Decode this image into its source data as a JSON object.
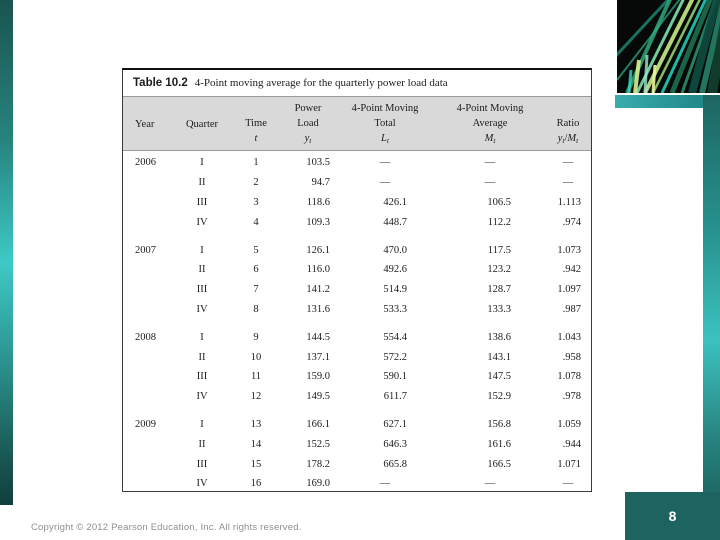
{
  "slide": {
    "page_number": "8",
    "copyright": "Copyright © 2012 Pearson Education, Inc. All rights reserved."
  },
  "colors": {
    "accent_teal_dark": "#1d6461",
    "accent_teal_bright": "#3ec9c6",
    "header_band_gray": "#d9d9d9"
  },
  "table": {
    "caption_label": "Table 10.2",
    "caption_text": "4-Point moving average for the quarterly power load data",
    "columns": [
      {
        "lines": [
          "",
          "Year",
          ""
        ]
      },
      {
        "lines": [
          "",
          "Quarter",
          ""
        ]
      },
      {
        "lines": [
          "",
          "Time",
          ""
        ],
        "symbol": "t"
      },
      {
        "lines": [
          "Power",
          "Load",
          ""
        ],
        "symbol": "y_t"
      },
      {
        "lines": [
          "4-Point Moving",
          "Total",
          ""
        ],
        "symbol": "L_t"
      },
      {
        "lines": [
          "4-Point Moving",
          "Average",
          ""
        ],
        "symbol": "M_t"
      },
      {
        "lines": [
          "",
          "Ratio",
          ""
        ],
        "symbol": "y_t/M_t"
      }
    ],
    "rows": [
      [
        "2006",
        "I",
        "1",
        "103.5",
        "—",
        "—",
        "—"
      ],
      [
        "",
        "II",
        "2",
        "94.7",
        "—",
        "—",
        "—"
      ],
      [
        "",
        "III",
        "3",
        "118.6",
        "426.1",
        "106.5",
        "1.113"
      ],
      [
        "",
        "IV",
        "4",
        "109.3",
        "448.7",
        "112.2",
        ".974"
      ],
      [
        "2007",
        "I",
        "5",
        "126.1",
        "470.0",
        "117.5",
        "1.073"
      ],
      [
        "",
        "II",
        "6",
        "116.0",
        "492.6",
        "123.2",
        ".942"
      ],
      [
        "",
        "III",
        "7",
        "141.2",
        "514.9",
        "128.7",
        "1.097"
      ],
      [
        "",
        "IV",
        "8",
        "131.6",
        "533.3",
        "133.3",
        ".987"
      ],
      [
        "2008",
        "I",
        "9",
        "144.5",
        "554.4",
        "138.6",
        "1.043"
      ],
      [
        "",
        "II",
        "10",
        "137.1",
        "572.2",
        "143.1",
        ".958"
      ],
      [
        "",
        "III",
        "11",
        "159.0",
        "590.1",
        "147.5",
        "1.078"
      ],
      [
        "",
        "IV",
        "12",
        "149.5",
        "611.7",
        "152.9",
        ".978"
      ],
      [
        "2009",
        "I",
        "13",
        "166.1",
        "627.1",
        "156.8",
        "1.059"
      ],
      [
        "",
        "II",
        "14",
        "152.5",
        "646.3",
        "161.6",
        ".944"
      ],
      [
        "",
        "III",
        "15",
        "178.2",
        "665.8",
        "166.5",
        "1.071"
      ],
      [
        "",
        "IV",
        "16",
        "169.0",
        "—",
        "—",
        "—"
      ]
    ]
  }
}
